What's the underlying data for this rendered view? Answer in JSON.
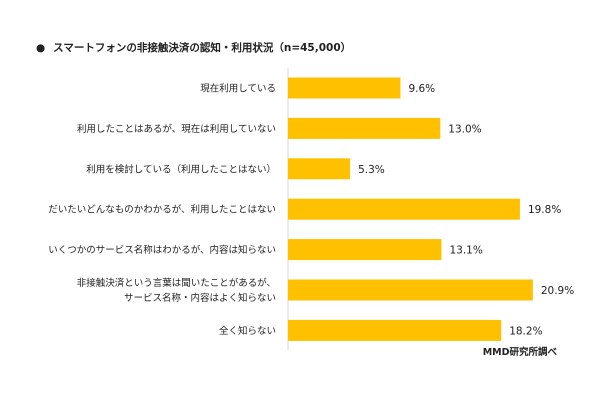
{
  "chart_data": {
    "type": "bar",
    "orientation": "horizontal",
    "title": "スマートフォンの非接触決済の認知・利用状況（n=45,000）",
    "title_bullet": "●",
    "source": "MMD研究所調べ",
    "unit": "%",
    "categories": [
      [
        "現在利用している"
      ],
      [
        "利用したことはあるが、現在は利用していない"
      ],
      [
        "利用を検討している（利用したことはない）"
      ],
      [
        "だいたいどんなものかわかるが、利用したことはない"
      ],
      [
        "いくつかのサービス名称はわかるが、内容は知らない"
      ],
      [
        "非接触決済という言葉は聞いたことがあるが、",
        "サービス名称・内容はよく知らない"
      ],
      [
        "全く知らない"
      ]
    ],
    "values": [
      9.6,
      13.0,
      5.3,
      19.8,
      13.1,
      20.9,
      18.2
    ],
    "value_labels": [
      "9.6%",
      "13.0%",
      "5.3%",
      "19.8%",
      "13.1%",
      "20.9%",
      "18.2%"
    ],
    "xlim": [
      0,
      21
    ],
    "bar_color": "#FFC000",
    "axis_color": "#D9D9D9",
    "grid": false,
    "legend": "none"
  }
}
